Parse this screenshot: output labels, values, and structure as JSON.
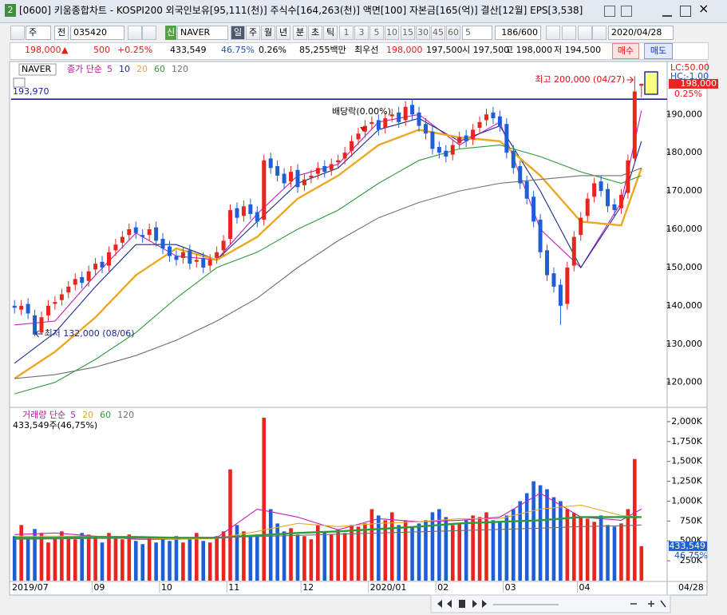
{
  "window": {
    "badge": "2",
    "title": "[0600] 키움종합차트 - KOSPI200 외국인보유[95,111(천)] 주식수[164,263(천)] 액면[100] 자본금[165(억)] 결산[12월] EPS[3,538]"
  },
  "toolbar": {
    "market": "주",
    "mode": "전",
    "code": "035420",
    "type_badge": "신",
    "name": "NAVER",
    "periods": [
      "일",
      "주",
      "월",
      "년",
      "분",
      "초",
      "틱"
    ],
    "intervals": [
      "1",
      "3",
      "5",
      "10",
      "15",
      "30",
      "45",
      "60"
    ],
    "interval_select": "5",
    "count": "186/600",
    "date": "2020/04/28"
  },
  "quote": {
    "price": "198,000",
    "change_mark": "▲",
    "change": "500",
    "change_pct": "+0.25%",
    "volume": "433,549",
    "volume_pct": "46.75%",
    "turnover_pct": "0.26%",
    "amount": "85,255백만",
    "best_label": "최우선",
    "ask": "198,000",
    "bid": "197,500",
    "open": "시 197,500",
    "high": "고 198,000",
    "low": "저 194,500",
    "buy": "매수",
    "sell": "매도"
  },
  "chart_data": [
    {
      "type": "candlestick",
      "name_badge": "NAVER",
      "legend_prefix": "종가 단순",
      "x_end_label": "04/28",
      "categories": [
        "2019/07",
        null,
        null,
        null,
        null,
        null,
        null,
        null,
        null,
        null,
        null,
        null,
        "09",
        null,
        null,
        null,
        null,
        null,
        null,
        null,
        null,
        null,
        "10",
        null,
        null,
        null,
        null,
        null,
        null,
        null,
        null,
        null,
        "11",
        null,
        null,
        null,
        null,
        null,
        null,
        null,
        null,
        null,
        null,
        "12",
        null,
        null,
        null,
        null,
        null,
        null,
        null,
        null,
        null,
        "2020/01",
        null,
        null,
        null,
        null,
        null,
        null,
        null,
        null,
        null,
        "02",
        null,
        null,
        null,
        null,
        null,
        null,
        null,
        null,
        null,
        "03",
        null,
        null,
        null,
        null,
        null,
        null,
        null,
        null,
        null,
        null,
        "04",
        null,
        null,
        null,
        null,
        null,
        null,
        null,
        null,
        null
      ],
      "open": [
        140000,
        139000,
        140500,
        137500,
        133000,
        137500,
        140500,
        141500,
        143500,
        145500,
        147500,
        146500,
        149500,
        151500,
        150500,
        154500,
        156500,
        158500,
        160500,
        158500,
        158500,
        160500,
        157500,
        155500,
        153000,
        152500,
        154500,
        151500,
        152500,
        150500,
        152500,
        154500,
        157500,
        165500,
        163500,
        166500,
        164500,
        162500,
        178500,
        176500,
        174500,
        172500,
        175500,
        171500,
        173500,
        174500,
        176500,
        175500,
        177500,
        178500,
        180500,
        183500,
        185500,
        187500,
        188500,
        186500,
        189500,
        190500,
        188500,
        192500,
        190500,
        187500,
        185500,
        181500,
        180500,
        179500,
        182500,
        184500,
        183500,
        186500,
        188500,
        190500,
        189500,
        187500,
        180500,
        176500,
        172500,
        168500,
        162500,
        154500,
        148500,
        145500,
        140500,
        150500,
        158500,
        163500,
        168500,
        172500,
        170500,
        166500,
        165500,
        169500,
        178500,
        197500
      ],
      "high": [
        141500,
        141500,
        142000,
        139000,
        138500,
        141500,
        142500,
        144500,
        146500,
        148500,
        149000,
        150500,
        152500,
        153000,
        155500,
        157500,
        159500,
        161500,
        162000,
        160000,
        161500,
        162000,
        159000,
        157000,
        154500,
        155500,
        156000,
        153500,
        154000,
        153500,
        155500,
        158500,
        166500,
        167000,
        167500,
        168000,
        166000,
        179500,
        180000,
        178000,
        176000,
        176500,
        177000,
        174500,
        175500,
        177500,
        178000,
        178500,
        179500,
        181500,
        184500,
        186500,
        188500,
        189500,
        190000,
        190500,
        191500,
        192000,
        193500,
        194000,
        192000,
        189000,
        187000,
        183000,
        182000,
        183500,
        185500,
        186000,
        187500,
        189500,
        191500,
        192000,
        191000,
        189000,
        182000,
        178000,
        174000,
        170000,
        164000,
        156000,
        150000,
        147000,
        151500,
        159500,
        164500,
        169500,
        173500,
        174000,
        172000,
        168000,
        170500,
        179500,
        200000,
        198000
      ],
      "low": [
        138000,
        137500,
        136500,
        132000,
        132500,
        136000,
        139000,
        140000,
        142000,
        144000,
        144500,
        145000,
        148000,
        148500,
        149000,
        153000,
        155000,
        157000,
        157500,
        156500,
        157000,
        155500,
        153500,
        151500,
        150500,
        151000,
        149500,
        150000,
        148500,
        149000,
        151000,
        153000,
        156000,
        161500,
        162000,
        162500,
        160500,
        161000,
        174500,
        172500,
        170500,
        171000,
        169500,
        170000,
        172000,
        173000,
        173500,
        174000,
        176000,
        177000,
        179000,
        182000,
        184000,
        186000,
        184500,
        185000,
        188000,
        186500,
        187000,
        188500,
        185500,
        183500,
        179500,
        178500,
        177500,
        178000,
        181000,
        181500,
        182000,
        185000,
        187000,
        187500,
        185500,
        178500,
        174500,
        170500,
        166500,
        160500,
        152500,
        146500,
        143500,
        135000,
        139000,
        149000,
        157000,
        162000,
        167000,
        168500,
        164500,
        163500,
        164000,
        168000,
        177000,
        194500
      ],
      "close": [
        139500,
        140000,
        138000,
        132500,
        137000,
        140000,
        141000,
        143000,
        145000,
        147000,
        146000,
        149000,
        151000,
        150000,
        154000,
        156000,
        158000,
        160000,
        159000,
        158000,
        160000,
        157000,
        155000,
        153000,
        152000,
        154000,
        151000,
        152000,
        150000,
        152000,
        154000,
        157000,
        165000,
        163000,
        166000,
        164000,
        162000,
        178000,
        176000,
        174000,
        172000,
        175000,
        171000,
        173000,
        174000,
        176000,
        175000,
        177000,
        178000,
        180000,
        183000,
        185000,
        187000,
        188000,
        186000,
        189000,
        190000,
        188000,
        192000,
        190000,
        187000,
        185000,
        181000,
        180000,
        179000,
        182000,
        184000,
        183000,
        186000,
        188000,
        190000,
        189000,
        187000,
        180000,
        176000,
        172000,
        168000,
        162000,
        154000,
        148000,
        145000,
        140000,
        150000,
        158000,
        163000,
        168000,
        172000,
        170000,
        166000,
        165000,
        169000,
        178000,
        196000,
        198000
      ],
      "up_color": "#e8261f",
      "down_color": "#1f5fd6",
      "series": [
        {
          "name": "5",
          "color": "#c21fb8",
          "x": [
            0,
            6,
            12,
            18,
            24,
            30,
            36,
            42,
            48,
            54,
            60,
            66,
            72,
            78,
            84,
            90,
            93
          ],
          "values": [
            135000,
            136000,
            148000,
            159000,
            153000,
            152000,
            164000,
            174000,
            177000,
            188000,
            190000,
            182000,
            188000,
            160000,
            150000,
            167000,
            191000
          ]
        },
        {
          "name": "10",
          "color": "#1c2a8c",
          "x": [
            0,
            6,
            12,
            18,
            24,
            30,
            36,
            42,
            48,
            54,
            60,
            66,
            72,
            78,
            84,
            90,
            93
          ],
          "values": [
            125000,
            133000,
            145000,
            156000,
            156000,
            152000,
            162000,
            172000,
            176000,
            186000,
            189000,
            183000,
            187000,
            170000,
            150000,
            166000,
            183000
          ]
        },
        {
          "name": "20",
          "color": "#eba820",
          "x": [
            0,
            6,
            12,
            18,
            24,
            30,
            36,
            42,
            48,
            54,
            60,
            66,
            72,
            78,
            84,
            90,
            93
          ],
          "values": [
            121000,
            128000,
            137000,
            148000,
            155000,
            152000,
            158000,
            168000,
            174000,
            182000,
            186000,
            184000,
            183000,
            174000,
            162000,
            161000,
            176000
          ]
        },
        {
          "name": "60",
          "color": "#2e9b3a",
          "x": [
            0,
            6,
            12,
            18,
            24,
            30,
            36,
            42,
            48,
            54,
            60,
            66,
            72,
            78,
            84,
            90,
            93
          ],
          "values": [
            117000,
            120000,
            126000,
            133000,
            142000,
            150000,
            154000,
            160000,
            165000,
            172000,
            178000,
            181000,
            182000,
            179000,
            175000,
            172000,
            174000
          ]
        },
        {
          "name": "120",
          "color": "#707070",
          "x": [
            0,
            6,
            12,
            18,
            24,
            30,
            36,
            42,
            48,
            54,
            60,
            66,
            72,
            78,
            84,
            90,
            93
          ],
          "values": [
            121000,
            122000,
            124000,
            127000,
            131000,
            136000,
            142000,
            150000,
            157000,
            163000,
            167000,
            170000,
            172000,
            173000,
            174000,
            174000,
            176000
          ]
        }
      ],
      "ylim": [
        114100,
        203200
      ],
      "yticks": [
        {
          "value": 120000,
          "label": "120,000"
        },
        {
          "value": 130000,
          "label": "130,000"
        },
        {
          "value": 140000,
          "label": "140,000"
        },
        {
          "value": 150000,
          "label": "150,000"
        },
        {
          "value": 160000,
          "label": "160,000"
        },
        {
          "value": 170000,
          "label": "170,000"
        },
        {
          "value": 180000,
          "label": "180,000"
        },
        {
          "value": 190000,
          "label": "190,000"
        }
      ],
      "ref_line": {
        "value": 193970,
        "label": "193,970",
        "color": "#1c1fa0"
      },
      "high_label": "최고 200,000 (04/27)",
      "low_label": "최저 132,000 (08/06)",
      "dividend_label": "배당락(0.00%)",
      "lc_label": "LC:50.00",
      "hc_label": "HC:-1.00",
      "last_price": {
        "value": 198000,
        "label": "198,000"
      },
      "last_change": "0.25%"
    },
    {
      "type": "bar",
      "legend_prefix": "거래량 단순",
      "info": "433,549주(46,75%)",
      "values": [
        560000,
        700000,
        520000,
        650000,
        600000,
        480000,
        540000,
        620000,
        560000,
        520000,
        600000,
        580000,
        550000,
        480000,
        600000,
        560000,
        520000,
        580000,
        500000,
        460000,
        540000,
        480000,
        520000,
        500000,
        560000,
        480000,
        520000,
        600000,
        500000,
        480000,
        560000,
        620000,
        1400000,
        700000,
        620000,
        560000,
        580000,
        2050000,
        900000,
        720000,
        620000,
        660000,
        580000,
        560000,
        520000,
        700000,
        620000,
        580000,
        640000,
        600000,
        700000,
        680000,
        720000,
        900000,
        820000,
        760000,
        860000,
        700000,
        760000,
        680000,
        720000,
        760000,
        860000,
        900000,
        800000,
        700000,
        720000,
        760000,
        820000,
        800000,
        860000,
        760000,
        740000,
        820000,
        900000,
        1000000,
        1100000,
        1250000,
        1200000,
        1150000,
        1050000,
        1000000,
        900000,
        850000,
        800000,
        780000,
        740000,
        820000,
        700000,
        680000,
        720000,
        900000,
        1530000,
        433549
      ],
      "series": [
        {
          "name": "5",
          "color": "#c21fb8",
          "x": [
            0,
            6,
            12,
            18,
            24,
            30,
            36,
            42,
            48,
            54,
            60,
            66,
            72,
            78,
            84,
            90,
            93
          ],
          "values": [
            580000,
            600000,
            560000,
            520000,
            520000,
            540000,
            900000,
            800000,
            640000,
            780000,
            740000,
            760000,
            800000,
            1100000,
            800000,
            760000,
            900000
          ]
        },
        {
          "name": "20",
          "color": "#eba820",
          "x": [
            0,
            6,
            12,
            18,
            24,
            30,
            36,
            42,
            48,
            54,
            60,
            66,
            72,
            78,
            84,
            90,
            93
          ],
          "values": [
            560000,
            560000,
            560000,
            540000,
            520000,
            530000,
            620000,
            720000,
            680000,
            720000,
            740000,
            780000,
            780000,
            900000,
            950000,
            820000,
            800000
          ]
        },
        {
          "name": "60",
          "color": "#2e9b3a",
          "x": [
            0,
            6,
            12,
            18,
            24,
            30,
            36,
            42,
            48,
            54,
            60,
            66,
            72,
            78,
            84,
            90,
            93
          ],
          "values": [
            540000,
            540000,
            550000,
            550000,
            540000,
            540000,
            570000,
            600000,
            620000,
            650000,
            680000,
            720000,
            740000,
            760000,
            800000,
            800000,
            800000
          ]
        },
        {
          "name": "120",
          "color": "#707070",
          "x": [
            0,
            6,
            12,
            18,
            24,
            30,
            36,
            42,
            48,
            54,
            60,
            66,
            72,
            78,
            84,
            90,
            93
          ],
          "values": [
            520000,
            525000,
            530000,
            535000,
            540000,
            545000,
            555000,
            570000,
            585000,
            600000,
            615000,
            630000,
            645000,
            660000,
            680000,
            690000,
            700000
          ]
        }
      ],
      "ylim": [
        0,
        2140000
      ],
      "yticks": [
        {
          "value": 250000,
          "label": "250K"
        },
        {
          "value": 500000,
          "label": "500K"
        },
        {
          "value": 750000,
          "label": "750K"
        },
        {
          "value": 1000000,
          "label": "1,000K"
        },
        {
          "value": 1250000,
          "label": "1,250K"
        },
        {
          "value": 1500000,
          "label": "1,500K"
        },
        {
          "value": 1750000,
          "label": "1,750K"
        },
        {
          "value": 2000000,
          "label": "2,000K"
        }
      ],
      "last_value": {
        "value": 433549,
        "label": "433,549"
      },
      "last_pct": "46.75%"
    }
  ]
}
